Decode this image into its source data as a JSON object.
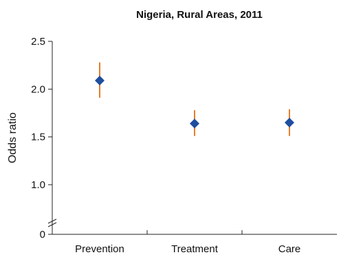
{
  "chart_data": {
    "type": "scatter",
    "title": "Nigeria, Rural Areas, 2011",
    "xlabel": "",
    "ylabel": "Odds ratio",
    "categories": [
      "Prevention",
      "Treatment",
      "Care"
    ],
    "series": [
      {
        "values": [
          2.09,
          1.64,
          1.65
        ],
        "lower": [
          1.91,
          1.51,
          1.51
        ],
        "upper": [
          2.28,
          1.78,
          1.79
        ]
      }
    ],
    "y_ticks": [
      {
        "value": 0,
        "label": "0"
      },
      {
        "value": 1.0,
        "label": "1.0"
      },
      {
        "value": 1.5,
        "label": "1.5"
      },
      {
        "value": 2.0,
        "label": "2.0"
      },
      {
        "value": 2.5,
        "label": "2.5"
      }
    ],
    "y_axis_break": true,
    "grid": false,
    "colors": {
      "marker": "#1f4e9e",
      "error_bar": "#e87d2a",
      "axis": "#222222"
    }
  }
}
